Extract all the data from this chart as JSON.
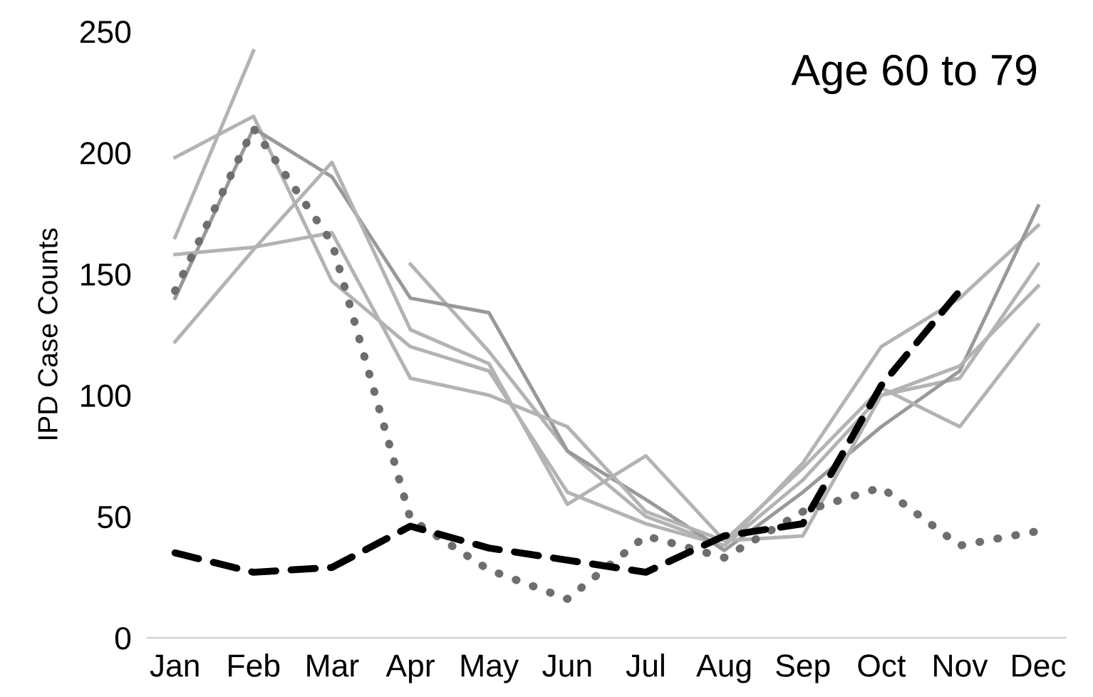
{
  "chart_data": {
    "type": "line",
    "ylabel": "IPD Case Counts",
    "annotations": [
      "Age 60 to 79"
    ],
    "categories": [
      "Jan",
      "Feb",
      "Mar",
      "Apr",
      "May",
      "Jun",
      "Jul",
      "Aug",
      "Sep",
      "Oct",
      "Nov",
      "Dec"
    ],
    "ylim": [
      0,
      250
    ],
    "yticks": [
      0,
      50,
      100,
      150,
      200,
      250
    ],
    "grid": false,
    "legend": false,
    "series": [
      {
        "color": "#b3b3b3",
        "line_style": "solid",
        "values": [
          165,
          242,
          null,
          154,
          118,
          77,
          50,
          38,
          72,
          120,
          140,
          170
        ]
      },
      {
        "color": "#b3b3b3",
        "line_style": "solid",
        "values": [
          198,
          215,
          147,
          120,
          110,
          60,
          47,
          38,
          65,
          100,
          107,
          154
        ]
      },
      {
        "color": "#999999",
        "line_style": "solid",
        "values": [
          140,
          210,
          190,
          140,
          134,
          77,
          57,
          36,
          60,
          87,
          110,
          178
        ]
      },
      {
        "color": "#b3b3b3",
        "line_style": "solid",
        "values": [
          158,
          161,
          167,
          107,
          100,
          87,
          52,
          40,
          70,
          103,
          87,
          129
        ]
      },
      {
        "color": "#b3b3b3",
        "line_style": "solid",
        "values": [
          122,
          160,
          196,
          127,
          113,
          55,
          75,
          40,
          42,
          100,
          112,
          145
        ]
      },
      {
        "color": "#6e6e6e",
        "line_style": "dotted",
        "values": [
          143,
          210,
          163,
          49,
          28,
          16,
          42,
          33,
          52,
          62,
          38,
          44
        ]
      },
      {
        "color": "#000000",
        "line_style": "dashed",
        "values": [
          35,
          27,
          29,
          46,
          37,
          32,
          27,
          42,
          47,
          104,
          143,
          null
        ]
      }
    ]
  }
}
